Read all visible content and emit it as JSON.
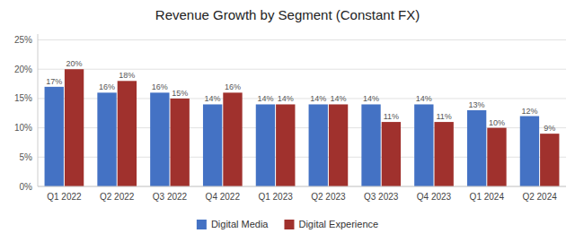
{
  "chart_data": {
    "type": "bar",
    "title": "Revenue Growth by Segment (Constant FX)",
    "categories": [
      "Q1 2022",
      "Q2 2022",
      "Q3 2022",
      "Q4 2022",
      "Q1 2023",
      "Q2 2023",
      "Q3 2023",
      "Q4 2023",
      "Q1 2024",
      "Q2 2024"
    ],
    "series": [
      {
        "name": "Digital Media",
        "color": "#4472C4",
        "values": [
          17,
          16,
          16,
          14,
          14,
          14,
          14,
          14,
          13,
          12
        ],
        "value_labels": [
          "17%",
          "16%",
          "16%",
          "14%",
          "14%",
          "14%",
          "14%",
          "14%",
          "13%",
          "12%"
        ]
      },
      {
        "name": "Digital Experience",
        "color": "#A0312D",
        "values": [
          20,
          18,
          15,
          16,
          14,
          14,
          11,
          11,
          10,
          9
        ],
        "value_labels": [
          "20%",
          "18%",
          "15%",
          "16%",
          "14%",
          "14%",
          "11%",
          "11%",
          "10%",
          "9%"
        ]
      }
    ],
    "ylim": [
      0,
      26
    ],
    "yticks": [
      {
        "value": 0,
        "label": "0%"
      },
      {
        "value": 5,
        "label": "5%"
      },
      {
        "value": 10,
        "label": "10%"
      },
      {
        "value": 15,
        "label": "15%"
      },
      {
        "value": 20,
        "label": "20%"
      },
      {
        "value": 25,
        "label": "25%"
      }
    ],
    "grid": true,
    "data_labels": true,
    "legend": "bottom"
  }
}
